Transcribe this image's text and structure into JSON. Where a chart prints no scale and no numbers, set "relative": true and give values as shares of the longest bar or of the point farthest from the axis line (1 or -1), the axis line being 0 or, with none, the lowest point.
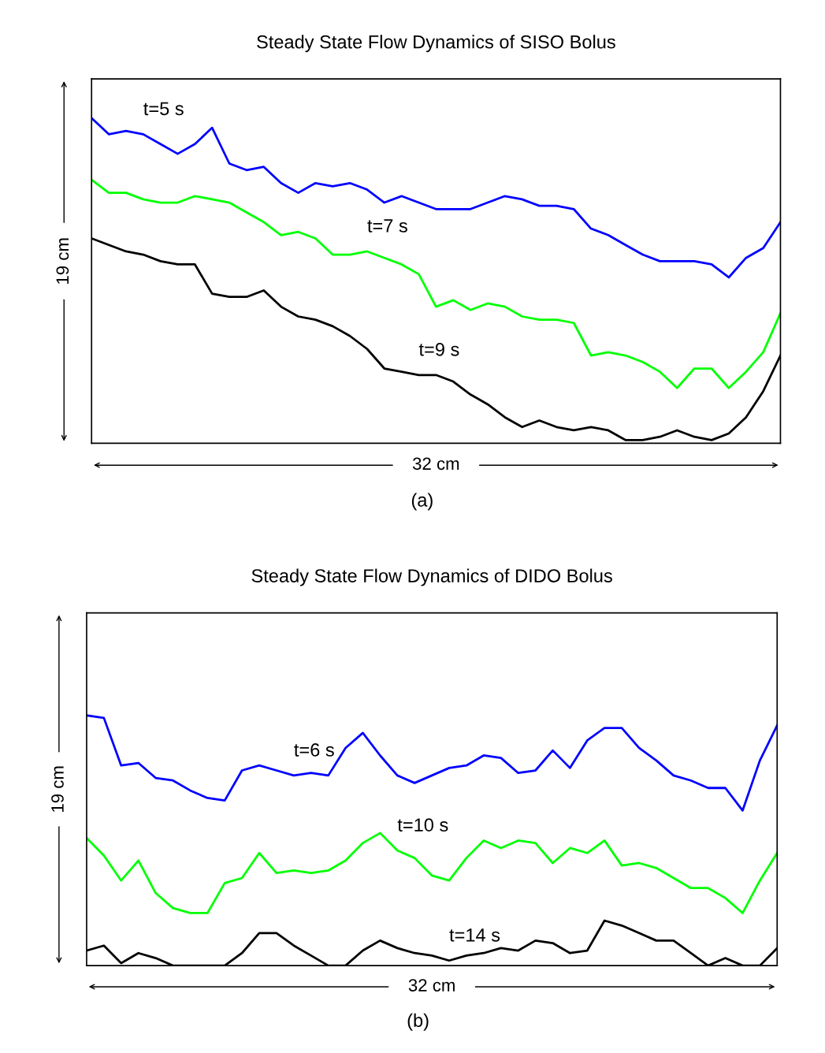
{
  "chart_data": [
    {
      "type": "line",
      "title": "Steady State Flow Dynamics of SISO Bolus",
      "xlabel": "32 cm",
      "ylabel": "19 cm",
      "relative": true,
      "annotations": [
        "(a)"
      ],
      "categories": [
        null,
        null,
        null,
        null,
        null,
        null,
        null,
        null,
        null,
        null,
        null,
        null,
        null,
        null,
        null,
        null,
        null,
        null,
        null,
        null,
        null,
        null,
        null,
        null,
        null,
        null,
        null,
        null,
        null,
        null,
        null,
        null,
        null,
        null,
        null,
        null,
        null,
        null,
        null,
        null,
        null
      ],
      "series": [
        {
          "name": "t=5 s",
          "color": "#0000ff",
          "values": [
            1.0,
            0.95,
            0.96,
            0.95,
            0.92,
            0.89,
            0.92,
            0.97,
            0.86,
            0.84,
            0.85,
            0.8,
            0.77,
            0.8,
            0.79,
            0.8,
            0.78,
            0.74,
            0.76,
            0.74,
            0.72,
            0.72,
            0.72,
            0.74,
            0.76,
            0.75,
            0.73,
            0.73,
            0.72,
            0.66,
            0.64,
            0.61,
            0.58,
            0.56,
            0.56,
            0.56,
            0.55,
            0.51,
            0.57,
            0.6,
            0.68
          ]
        },
        {
          "name": "t=7 s",
          "color": "#00ff00",
          "values": [
            0.81,
            0.77,
            0.77,
            0.75,
            0.74,
            0.74,
            0.76,
            0.75,
            0.74,
            0.71,
            0.68,
            0.64,
            0.65,
            0.63,
            0.58,
            0.58,
            0.59,
            0.57,
            0.55,
            0.52,
            0.42,
            0.44,
            0.41,
            0.43,
            0.42,
            0.39,
            0.38,
            0.38,
            0.37,
            0.27,
            0.28,
            0.27,
            0.25,
            0.22,
            0.17,
            0.23,
            0.23,
            0.17,
            0.22,
            0.28,
            0.4
          ]
        },
        {
          "name": "t=9 s",
          "color": "#000000",
          "values": [
            0.63,
            0.61,
            0.59,
            0.58,
            0.56,
            0.55,
            0.55,
            0.46,
            0.45,
            0.45,
            0.47,
            0.42,
            0.39,
            0.38,
            0.36,
            0.33,
            0.29,
            0.23,
            0.22,
            0.21,
            0.21,
            0.19,
            0.15,
            0.12,
            0.08,
            0.05,
            0.07,
            0.05,
            0.04,
            0.05,
            0.04,
            0.01,
            0.01,
            0.02,
            0.04,
            0.02,
            0.01,
            0.03,
            0.08,
            0.16,
            0.27
          ]
        }
      ]
    },
    {
      "type": "line",
      "title": "Steady State Flow Dynamics of DIDO Bolus",
      "xlabel": "32 cm",
      "ylabel": "19 cm",
      "relative": true,
      "annotations": [
        "(b)"
      ],
      "categories": [
        null,
        null,
        null,
        null,
        null,
        null,
        null,
        null,
        null,
        null,
        null,
        null,
        null,
        null,
        null,
        null,
        null,
        null,
        null,
        null,
        null,
        null,
        null,
        null,
        null,
        null,
        null,
        null,
        null,
        null,
        null,
        null,
        null,
        null,
        null,
        null,
        null,
        null,
        null,
        null,
        null
      ],
      "series": [
        {
          "name": "t=6 s",
          "color": "#0000ff",
          "values": [
            1.0,
            0.99,
            0.8,
            0.81,
            0.75,
            0.74,
            0.7,
            0.67,
            0.66,
            0.78,
            0.8,
            0.78,
            0.76,
            0.77,
            0.76,
            0.87,
            0.93,
            0.84,
            0.76,
            0.73,
            0.76,
            0.79,
            0.8,
            0.84,
            0.83,
            0.77,
            0.78,
            0.86,
            0.79,
            0.9,
            0.95,
            0.95,
            0.87,
            0.82,
            0.76,
            0.74,
            0.71,
            0.71,
            0.62,
            0.82,
            0.96
          ]
        },
        {
          "name": "t=10 s",
          "color": "#00ff00",
          "values": [
            0.51,
            0.44,
            0.34,
            0.42,
            0.29,
            0.23,
            0.21,
            0.21,
            0.33,
            0.35,
            0.45,
            0.37,
            0.38,
            0.37,
            0.38,
            0.42,
            0.49,
            0.53,
            0.46,
            0.43,
            0.36,
            0.34,
            0.43,
            0.5,
            0.47,
            0.5,
            0.49,
            0.41,
            0.47,
            0.45,
            0.5,
            0.4,
            0.41,
            0.39,
            0.35,
            0.31,
            0.31,
            0.27,
            0.21,
            0.34,
            0.45
          ]
        },
        {
          "name": "t=14 s",
          "color": "#000000",
          "values": [
            0.06,
            0.08,
            0.01,
            0.05,
            0.03,
            0.0,
            0.0,
            0.0,
            0.0,
            0.05,
            0.13,
            0.13,
            0.08,
            0.04,
            0.0,
            0.0,
            0.06,
            0.1,
            0.07,
            0.05,
            0.04,
            0.02,
            0.04,
            0.05,
            0.07,
            0.06,
            0.1,
            0.09,
            0.05,
            0.06,
            0.18,
            0.16,
            0.13,
            0.1,
            0.1,
            0.05,
            0.0,
            0.03,
            0.0,
            0.0,
            0.07
          ]
        }
      ]
    }
  ]
}
